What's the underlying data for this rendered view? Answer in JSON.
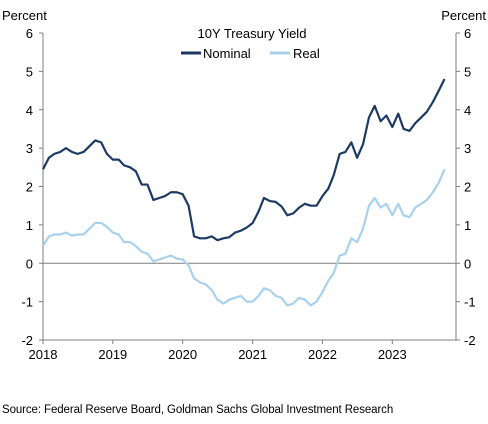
{
  "chart_data": {
    "type": "line",
    "title": "10Y Treasury Yield",
    "ylabel_left": "Percent",
    "ylabel_right": "Percent",
    "xlabel": "",
    "ylim": [
      -2,
      6
    ],
    "y_ticks": [
      "-2",
      "-1",
      "0",
      "1",
      "2",
      "3",
      "4",
      "5",
      "6"
    ],
    "x_ticks": [
      "2018",
      "2019",
      "2020",
      "2021",
      "2022",
      "2023"
    ],
    "xlim": [
      "2018-01-01",
      "2023-11-30"
    ],
    "legend": "top-center",
    "grid": false,
    "zero_line": true,
    "series": [
      {
        "name": "Nominal",
        "color": "#1c3a63",
        "points": [
          [
            "2018-01-01",
            2.45
          ],
          [
            "2018-02-01",
            2.75
          ],
          [
            "2018-03-01",
            2.85
          ],
          [
            "2018-04-01",
            2.9
          ],
          [
            "2018-05-01",
            3.0
          ],
          [
            "2018-06-01",
            2.9
          ],
          [
            "2018-07-01",
            2.85
          ],
          [
            "2018-08-01",
            2.9
          ],
          [
            "2018-09-01",
            3.05
          ],
          [
            "2018-10-01",
            3.2
          ],
          [
            "2018-11-01",
            3.15
          ],
          [
            "2018-12-01",
            2.85
          ],
          [
            "2019-01-01",
            2.7
          ],
          [
            "2019-02-01",
            2.7
          ],
          [
            "2019-03-01",
            2.55
          ],
          [
            "2019-04-01",
            2.5
          ],
          [
            "2019-05-01",
            2.4
          ],
          [
            "2019-06-01",
            2.05
          ],
          [
            "2019-07-01",
            2.05
          ],
          [
            "2019-08-01",
            1.65
          ],
          [
            "2019-09-01",
            1.7
          ],
          [
            "2019-10-01",
            1.75
          ],
          [
            "2019-11-01",
            1.85
          ],
          [
            "2019-12-01",
            1.85
          ],
          [
            "2020-01-01",
            1.8
          ],
          [
            "2020-02-01",
            1.5
          ],
          [
            "2020-03-01",
            0.7
          ],
          [
            "2020-04-01",
            0.65
          ],
          [
            "2020-05-01",
            0.65
          ],
          [
            "2020-06-01",
            0.7
          ],
          [
            "2020-07-01",
            0.6
          ],
          [
            "2020-08-01",
            0.65
          ],
          [
            "2020-09-01",
            0.68
          ],
          [
            "2020-10-01",
            0.8
          ],
          [
            "2020-11-01",
            0.85
          ],
          [
            "2020-12-01",
            0.93
          ],
          [
            "2021-01-01",
            1.05
          ],
          [
            "2021-02-01",
            1.35
          ],
          [
            "2021-03-01",
            1.7
          ],
          [
            "2021-04-01",
            1.62
          ],
          [
            "2021-05-01",
            1.6
          ],
          [
            "2021-06-01",
            1.48
          ],
          [
            "2021-07-01",
            1.25
          ],
          [
            "2021-08-01",
            1.3
          ],
          [
            "2021-09-01",
            1.45
          ],
          [
            "2021-10-01",
            1.55
          ],
          [
            "2021-11-01",
            1.5
          ],
          [
            "2021-12-01",
            1.5
          ],
          [
            "2022-01-01",
            1.75
          ],
          [
            "2022-02-01",
            1.95
          ],
          [
            "2022-03-01",
            2.3
          ],
          [
            "2022-04-01",
            2.85
          ],
          [
            "2022-05-01",
            2.9
          ],
          [
            "2022-06-01",
            3.15
          ],
          [
            "2022-07-01",
            2.75
          ],
          [
            "2022-08-01",
            3.1
          ],
          [
            "2022-09-01",
            3.8
          ],
          [
            "2022-10-01",
            4.1
          ],
          [
            "2022-11-01",
            3.7
          ],
          [
            "2022-12-01",
            3.85
          ],
          [
            "2023-01-01",
            3.55
          ],
          [
            "2023-02-01",
            3.9
          ],
          [
            "2023-03-01",
            3.5
          ],
          [
            "2023-04-01",
            3.45
          ],
          [
            "2023-05-01",
            3.65
          ],
          [
            "2023-06-01",
            3.8
          ],
          [
            "2023-07-01",
            3.95
          ],
          [
            "2023-08-01",
            4.2
          ],
          [
            "2023-09-01",
            4.5
          ],
          [
            "2023-10-01",
            4.8
          ]
        ]
      },
      {
        "name": "Real",
        "color": "#a9d1ee",
        "points": [
          [
            "2018-01-01",
            0.45
          ],
          [
            "2018-02-01",
            0.7
          ],
          [
            "2018-03-01",
            0.75
          ],
          [
            "2018-04-01",
            0.75
          ],
          [
            "2018-05-01",
            0.8
          ],
          [
            "2018-06-01",
            0.72
          ],
          [
            "2018-07-01",
            0.75
          ],
          [
            "2018-08-01",
            0.75
          ],
          [
            "2018-09-01",
            0.9
          ],
          [
            "2018-10-01",
            1.05
          ],
          [
            "2018-11-01",
            1.05
          ],
          [
            "2018-12-01",
            0.95
          ],
          [
            "2019-01-01",
            0.8
          ],
          [
            "2019-02-01",
            0.75
          ],
          [
            "2019-03-01",
            0.55
          ],
          [
            "2019-04-01",
            0.55
          ],
          [
            "2019-05-01",
            0.45
          ],
          [
            "2019-06-01",
            0.3
          ],
          [
            "2019-07-01",
            0.25
          ],
          [
            "2019-08-01",
            0.05
          ],
          [
            "2019-09-01",
            0.1
          ],
          [
            "2019-10-01",
            0.15
          ],
          [
            "2019-11-01",
            0.2
          ],
          [
            "2019-12-01",
            0.12
          ],
          [
            "2020-01-01",
            0.1
          ],
          [
            "2020-02-01",
            -0.05
          ],
          [
            "2020-03-01",
            -0.4
          ],
          [
            "2020-04-01",
            -0.5
          ],
          [
            "2020-05-01",
            -0.55
          ],
          [
            "2020-06-01",
            -0.7
          ],
          [
            "2020-07-01",
            -0.95
          ],
          [
            "2020-08-01",
            -1.05
          ],
          [
            "2020-09-01",
            -0.95
          ],
          [
            "2020-10-01",
            -0.9
          ],
          [
            "2020-11-01",
            -0.85
          ],
          [
            "2020-12-01",
            -1.0
          ],
          [
            "2021-01-01",
            -1.0
          ],
          [
            "2021-02-01",
            -0.85
          ],
          [
            "2021-03-01",
            -0.65
          ],
          [
            "2021-04-01",
            -0.7
          ],
          [
            "2021-05-01",
            -0.85
          ],
          [
            "2021-06-01",
            -0.9
          ],
          [
            "2021-07-01",
            -1.1
          ],
          [
            "2021-08-01",
            -1.05
          ],
          [
            "2021-09-01",
            -0.9
          ],
          [
            "2021-10-01",
            -0.95
          ],
          [
            "2021-11-01",
            -1.1
          ],
          [
            "2021-12-01",
            -1.0
          ],
          [
            "2022-01-01",
            -0.75
          ],
          [
            "2022-02-01",
            -0.45
          ],
          [
            "2022-03-01",
            -0.25
          ],
          [
            "2022-04-01",
            0.2
          ],
          [
            "2022-05-01",
            0.25
          ],
          [
            "2022-06-01",
            0.65
          ],
          [
            "2022-07-01",
            0.55
          ],
          [
            "2022-08-01",
            0.9
          ],
          [
            "2022-09-01",
            1.5
          ],
          [
            "2022-10-01",
            1.7
          ],
          [
            "2022-11-01",
            1.45
          ],
          [
            "2022-12-01",
            1.55
          ],
          [
            "2023-01-01",
            1.25
          ],
          [
            "2023-02-01",
            1.55
          ],
          [
            "2023-03-01",
            1.25
          ],
          [
            "2023-04-01",
            1.2
          ],
          [
            "2023-05-01",
            1.45
          ],
          [
            "2023-06-01",
            1.55
          ],
          [
            "2023-07-01",
            1.65
          ],
          [
            "2023-08-01",
            1.85
          ],
          [
            "2023-09-01",
            2.1
          ],
          [
            "2023-10-01",
            2.45
          ]
        ]
      }
    ]
  },
  "source_note": "Source: Federal Reserve Board, Goldman Sachs Global Investment Research"
}
